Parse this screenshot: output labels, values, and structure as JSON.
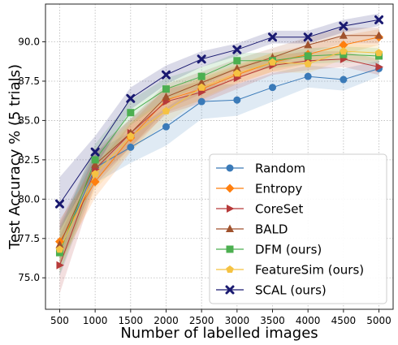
{
  "chart_data": {
    "type": "line",
    "xlabel": "Number of labelled images",
    "ylabel": "Test Accuracy % (5 trials)",
    "x": [
      500,
      1000,
      1500,
      2000,
      2500,
      3000,
      3500,
      4000,
      4500,
      5000
    ],
    "xlim": [
      300,
      5200
    ],
    "ylim": [
      73.0,
      92.4
    ],
    "yticks": [
      75.0,
      77.5,
      80.0,
      82.5,
      85.0,
      87.5,
      90.0
    ],
    "xticks": [
      500,
      1000,
      1500,
      2000,
      2500,
      3000,
      3500,
      4000,
      4500,
      5000
    ],
    "grid": true,
    "legend_position": "bottom-right",
    "series": [
      {
        "name": "Random",
        "color": "#3a7ab8",
        "marker": "circle",
        "values": [
          76.7,
          82.0,
          83.3,
          84.6,
          86.2,
          86.3,
          87.1,
          87.8,
          87.6,
          88.3
        ],
        "spread": [
          1.6,
          1.0,
          1.0,
          1.2,
          1.1,
          1.0,
          0.9,
          0.7,
          0.7,
          0.5
        ]
      },
      {
        "name": "Entropy",
        "color": "#ff7f0e",
        "marker": "diamond",
        "values": [
          77.3,
          81.1,
          83.9,
          86.3,
          87.0,
          87.9,
          88.7,
          89.2,
          89.8,
          90.3
        ],
        "spread": [
          1.4,
          1.0,
          0.9,
          0.8,
          0.7,
          0.6,
          0.6,
          0.6,
          0.6,
          0.5
        ]
      },
      {
        "name": "CoreSet",
        "color": "#b73a3a",
        "marker": "triangle-right",
        "values": [
          75.8,
          81.9,
          84.2,
          86.2,
          86.8,
          87.7,
          88.5,
          88.8,
          88.9,
          88.4
        ],
        "spread": [
          1.8,
          1.0,
          0.9,
          0.8,
          0.7,
          0.7,
          0.6,
          0.6,
          0.5,
          0.5
        ]
      },
      {
        "name": "BALD",
        "color": "#a0522d",
        "marker": "triangle-up",
        "values": [
          77.1,
          82.2,
          84.2,
          86.5,
          87.4,
          88.3,
          89.0,
          89.8,
          90.4,
          90.4
        ],
        "spread": [
          1.4,
          1.0,
          0.9,
          0.8,
          0.7,
          0.6,
          0.6,
          0.5,
          0.5,
          0.5
        ]
      },
      {
        "name": "DFM (ours)",
        "color": "#4caf50",
        "marker": "square",
        "values": [
          76.6,
          82.5,
          85.5,
          87.0,
          87.8,
          88.8,
          88.8,
          89.1,
          89.2,
          89.1
        ],
        "spread": [
          1.4,
          1.0,
          0.8,
          0.7,
          0.6,
          0.5,
          0.5,
          0.5,
          0.5,
          0.5
        ]
      },
      {
        "name": "FeatureSim (ours)",
        "color": "#f5c242",
        "marker": "pentagon",
        "values": [
          76.8,
          81.6,
          84.0,
          85.6,
          87.1,
          88.0,
          88.7,
          88.6,
          89.4,
          89.3
        ],
        "spread": [
          1.4,
          1.0,
          0.9,
          0.8,
          0.7,
          0.6,
          0.6,
          0.6,
          0.5,
          0.5
        ]
      },
      {
        "name": "SCAL (ours)",
        "color": "#191970",
        "marker": "x",
        "values": [
          79.7,
          83.0,
          86.4,
          87.9,
          88.9,
          89.5,
          90.3,
          90.3,
          91.0,
          91.4
        ],
        "spread": [
          1.7,
          1.0,
          0.7,
          0.6,
          0.5,
          0.4,
          0.4,
          0.4,
          0.4,
          0.4
        ]
      }
    ]
  }
}
